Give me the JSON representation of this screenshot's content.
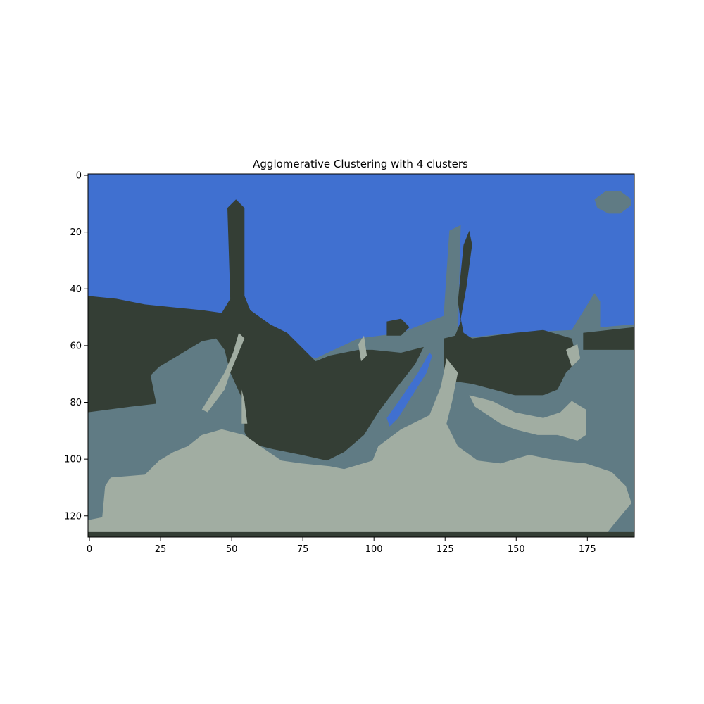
{
  "chart_data": {
    "type": "heatmap",
    "title": "Agglomerative Clustering with 4 clusters",
    "xlabel": "",
    "ylabel": "",
    "image_shape": [
      128,
      192
    ],
    "xlim": [
      -0.5,
      191.5
    ],
    "ylim": [
      127.5,
      -0.5
    ],
    "x_ticks": [
      0,
      25,
      50,
      75,
      100,
      125,
      150,
      175
    ],
    "y_ticks": [
      0,
      20,
      40,
      60,
      80,
      100,
      120
    ],
    "grid": false,
    "clusters": [
      {
        "id": 0,
        "color": "#4070d0"
      },
      {
        "id": 1,
        "color": "#343e35"
      },
      {
        "id": 2,
        "color": "#607b84"
      },
      {
        "id": 3,
        "color": "#a1ada2"
      }
    ],
    "regions": [
      {
        "cluster": 0,
        "points": [
          [
            0,
            0
          ],
          [
            192,
            0
          ],
          [
            192,
            128
          ],
          [
            0,
            128
          ]
        ]
      },
      {
        "cluster": 2,
        "points": [
          [
            0,
            84
          ],
          [
            0,
            67
          ],
          [
            20,
            62
          ],
          [
            45,
            56
          ],
          [
            55,
            56
          ],
          [
            80,
            65
          ],
          [
            95,
            58
          ],
          [
            110,
            56
          ],
          [
            120,
            52
          ],
          [
            125,
            50
          ],
          [
            127,
            20
          ],
          [
            131,
            18
          ],
          [
            130,
            58
          ],
          [
            150,
            56
          ],
          [
            170,
            55
          ],
          [
            178,
            42
          ],
          [
            180,
            45
          ],
          [
            180,
            54
          ],
          [
            192,
            53
          ],
          [
            192,
            128
          ],
          [
            0,
            128
          ]
        ]
      },
      {
        "cluster": 2,
        "points": [
          [
            178,
            9
          ],
          [
            182,
            6
          ],
          [
            187,
            6
          ],
          [
            191,
            9
          ],
          [
            191,
            11
          ],
          [
            187,
            14
          ],
          [
            183,
            14
          ],
          [
            179,
            12
          ]
        ]
      },
      {
        "cluster": 1,
        "points": [
          [
            0,
            43
          ],
          [
            10,
            44
          ],
          [
            20,
            46
          ],
          [
            30,
            47
          ],
          [
            40,
            48
          ],
          [
            47,
            49
          ],
          [
            50,
            44
          ],
          [
            49,
            12
          ],
          [
            52,
            9
          ],
          [
            55,
            12
          ],
          [
            55,
            43
          ],
          [
            57,
            48
          ],
          [
            64,
            53
          ],
          [
            70,
            56
          ],
          [
            75,
            61
          ],
          [
            80,
            66
          ],
          [
            85,
            64
          ],
          [
            95,
            62
          ],
          [
            100,
            62
          ],
          [
            110,
            63
          ],
          [
            118,
            61
          ],
          [
            115,
            67
          ],
          [
            108,
            76
          ],
          [
            102,
            84
          ],
          [
            97,
            92
          ],
          [
            90,
            98
          ],
          [
            84,
            101
          ],
          [
            75,
            99
          ],
          [
            65,
            97
          ],
          [
            57,
            95
          ],
          [
            55,
            91
          ],
          [
            55,
            81
          ],
          [
            50,
            70
          ],
          [
            48,
            62
          ],
          [
            45,
            58
          ],
          [
            40,
            59
          ],
          [
            35,
            62
          ],
          [
            30,
            65
          ],
          [
            25,
            68
          ],
          [
            22,
            71
          ],
          [
            24,
            81
          ],
          [
            15,
            82
          ],
          [
            0,
            84
          ]
        ]
      },
      {
        "cluster": 1,
        "points": [
          [
            125,
            58
          ],
          [
            129,
            57
          ],
          [
            131,
            52
          ],
          [
            130,
            45
          ],
          [
            132,
            25
          ],
          [
            134,
            20
          ],
          [
            135,
            25
          ],
          [
            133,
            40
          ],
          [
            131,
            51
          ],
          [
            132,
            56
          ],
          [
            135,
            58
          ],
          [
            150,
            56
          ],
          [
            160,
            55
          ],
          [
            170,
            58
          ],
          [
            172,
            66
          ],
          [
            168,
            70
          ],
          [
            165,
            76
          ],
          [
            160,
            78
          ],
          [
            150,
            78
          ],
          [
            135,
            74
          ],
          [
            128,
            73
          ],
          [
            125,
            70
          ]
        ]
      },
      {
        "cluster": 1,
        "points": [
          [
            174,
            56
          ],
          [
            192,
            54
          ],
          [
            192,
            62
          ],
          [
            174,
            62
          ]
        ]
      },
      {
        "cluster": 1,
        "points": [
          [
            105,
            52
          ],
          [
            110,
            51
          ],
          [
            113,
            54
          ],
          [
            110,
            57
          ],
          [
            105,
            57
          ]
        ]
      },
      {
        "cluster": 1,
        "points": [
          [
            118,
            88
          ],
          [
            121,
            88
          ],
          [
            124,
            91
          ],
          [
            121,
            94
          ],
          [
            118,
            91
          ]
        ]
      },
      {
        "cluster": 0,
        "points": [
          [
            105,
            86
          ],
          [
            110,
            79
          ],
          [
            116,
            70
          ],
          [
            120,
            63
          ],
          [
            121,
            64
          ],
          [
            119,
            70
          ],
          [
            114,
            78
          ],
          [
            109,
            86
          ],
          [
            106,
            89
          ]
        ]
      },
      {
        "cluster": 3,
        "points": [
          [
            0,
            128
          ],
          [
            0,
            122
          ],
          [
            5,
            121
          ],
          [
            6,
            110
          ],
          [
            8,
            107
          ],
          [
            20,
            106
          ],
          [
            25,
            101
          ],
          [
            30,
            98
          ],
          [
            35,
            96
          ],
          [
            40,
            92
          ],
          [
            47,
            90
          ],
          [
            55,
            92
          ],
          [
            62,
            97
          ],
          [
            68,
            101
          ],
          [
            75,
            102
          ],
          [
            85,
            103
          ],
          [
            90,
            104
          ],
          [
            100,
            101
          ],
          [
            102,
            96
          ],
          [
            110,
            90
          ],
          [
            120,
            85
          ],
          [
            124,
            75
          ],
          [
            126,
            65
          ],
          [
            130,
            70
          ],
          [
            128,
            80
          ],
          [
            126,
            88
          ],
          [
            130,
            96
          ],
          [
            137,
            101
          ],
          [
            145,
            102
          ],
          [
            155,
            99
          ],
          [
            165,
            101
          ],
          [
            175,
            102
          ],
          [
            184,
            105
          ],
          [
            189,
            110
          ],
          [
            191,
            116
          ],
          [
            186,
            122
          ],
          [
            182,
            127
          ],
          [
            140,
            128
          ]
        ]
      },
      {
        "cluster": 3,
        "points": [
          [
            40,
            83
          ],
          [
            45,
            75
          ],
          [
            48,
            70
          ],
          [
            51,
            63
          ],
          [
            53,
            56
          ],
          [
            55,
            58
          ],
          [
            50,
            70
          ],
          [
            48,
            76
          ],
          [
            42,
            84
          ]
        ]
      },
      {
        "cluster": 3,
        "points": [
          [
            54,
            76
          ],
          [
            55,
            80
          ],
          [
            56,
            88
          ],
          [
            54,
            88
          ]
        ]
      },
      {
        "cluster": 3,
        "points": [
          [
            95,
            60
          ],
          [
            97,
            57
          ],
          [
            98,
            64
          ],
          [
            96,
            66
          ]
        ]
      },
      {
        "cluster": 3,
        "points": [
          [
            134,
            78
          ],
          [
            142,
            80
          ],
          [
            150,
            84
          ],
          [
            160,
            86
          ],
          [
            166,
            84
          ],
          [
            170,
            80
          ],
          [
            175,
            83
          ],
          [
            175,
            92
          ],
          [
            172,
            94
          ],
          [
            165,
            92
          ],
          [
            158,
            92
          ],
          [
            150,
            90
          ],
          [
            145,
            88
          ],
          [
            136,
            82
          ]
        ]
      },
      {
        "cluster": 3,
        "points": [
          [
            168,
            62
          ],
          [
            172,
            60
          ],
          [
            173,
            65
          ],
          [
            170,
            68
          ]
        ]
      },
      {
        "cluster": 1,
        "points": [
          [
            0,
            126
          ],
          [
            192,
            126
          ],
          [
            192,
            128
          ],
          [
            0,
            128
          ]
        ]
      }
    ]
  }
}
